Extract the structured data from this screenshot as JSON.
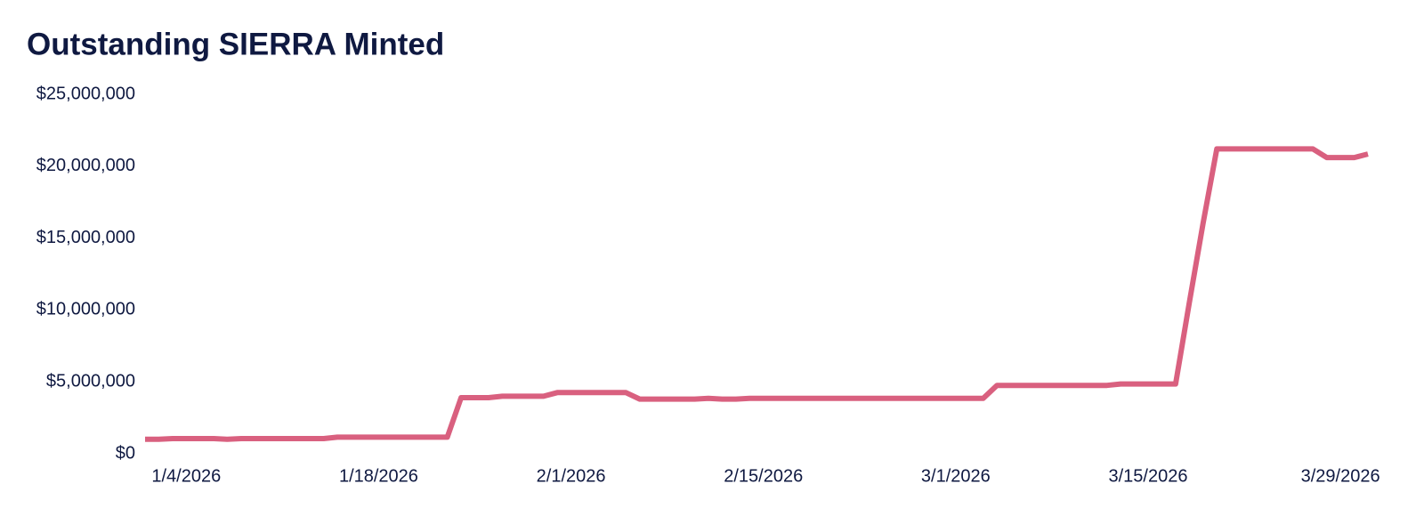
{
  "chart_data": {
    "type": "line",
    "title": "Outstanding SIERRA Minted",
    "x": [
      "2026-01-01",
      "2026-01-02",
      "2026-01-03",
      "2026-01-04",
      "2026-01-05",
      "2026-01-06",
      "2026-01-07",
      "2026-01-08",
      "2026-01-09",
      "2026-01-10",
      "2026-01-11",
      "2026-01-12",
      "2026-01-13",
      "2026-01-14",
      "2026-01-15",
      "2026-01-16",
      "2026-01-17",
      "2026-01-18",
      "2026-01-19",
      "2026-01-20",
      "2026-01-21",
      "2026-01-22",
      "2026-01-23",
      "2026-01-24",
      "2026-01-25",
      "2026-01-26",
      "2026-01-27",
      "2026-01-28",
      "2026-01-29",
      "2026-01-30",
      "2026-01-31",
      "2026-02-01",
      "2026-02-02",
      "2026-02-03",
      "2026-02-04",
      "2026-02-05",
      "2026-02-06",
      "2026-02-07",
      "2026-02-08",
      "2026-02-09",
      "2026-02-10",
      "2026-02-11",
      "2026-02-12",
      "2026-02-13",
      "2026-02-14",
      "2026-02-15",
      "2026-02-16",
      "2026-02-17",
      "2026-02-18",
      "2026-02-19",
      "2026-02-20",
      "2026-02-21",
      "2026-02-22",
      "2026-02-23",
      "2026-02-24",
      "2026-02-25",
      "2026-02-26",
      "2026-02-27",
      "2026-02-28",
      "2026-03-01",
      "2026-03-02",
      "2026-03-03",
      "2026-03-04",
      "2026-03-05",
      "2026-03-06",
      "2026-03-07",
      "2026-03-08",
      "2026-03-09",
      "2026-03-10",
      "2026-03-11",
      "2026-03-12",
      "2026-03-13",
      "2026-03-14",
      "2026-03-15",
      "2026-03-16",
      "2026-03-17",
      "2026-03-18",
      "2026-03-19",
      "2026-03-20",
      "2026-03-21",
      "2026-03-22",
      "2026-03-23",
      "2026-03-24",
      "2026-03-25",
      "2026-03-26",
      "2026-03-27",
      "2026-03-28",
      "2026-03-29",
      "2026-03-30",
      "2026-03-31"
    ],
    "series": [
      {
        "color": "#d9607f",
        "values": [
          1000000,
          1000000,
          1050000,
          1050000,
          1050000,
          1050000,
          1000000,
          1050000,
          1050000,
          1050000,
          1050000,
          1050000,
          1050000,
          1050000,
          1150000,
          1150000,
          1150000,
          1150000,
          1150000,
          1150000,
          1150000,
          1150000,
          1150000,
          3900000,
          3900000,
          3900000,
          4000000,
          4000000,
          4000000,
          4000000,
          4250000,
          4250000,
          4250000,
          4250000,
          4250000,
          4250000,
          3800000,
          3800000,
          3800000,
          3800000,
          3800000,
          3850000,
          3800000,
          3800000,
          3850000,
          3850000,
          3850000,
          3850000,
          3850000,
          3850000,
          3850000,
          3850000,
          3850000,
          3850000,
          3850000,
          3850000,
          3850000,
          3850000,
          3850000,
          3850000,
          3850000,
          3850000,
          4750000,
          4750000,
          4750000,
          4750000,
          4750000,
          4750000,
          4750000,
          4750000,
          4750000,
          4850000,
          4850000,
          4850000,
          4850000,
          4850000,
          10500000,
          16000000,
          21200000,
          21200000,
          21200000,
          21200000,
          21200000,
          21200000,
          21200000,
          21200000,
          20600000,
          20600000,
          20600000,
          20850000
        ]
      }
    ],
    "xlim": [
      "2026-01-01",
      "2026-03-31"
    ],
    "xticks": [
      {
        "value": "2026-01-04",
        "label": "1/4/2026"
      },
      {
        "value": "2026-01-18",
        "label": "1/18/2026"
      },
      {
        "value": "2026-02-01",
        "label": "2/1/2026"
      },
      {
        "value": "2026-02-15",
        "label": "2/15/2026"
      },
      {
        "value": "2026-03-01",
        "label": "3/1/2026"
      },
      {
        "value": "2026-03-15",
        "label": "3/15/2026"
      },
      {
        "value": "2026-03-29",
        "label": "3/29/2026"
      }
    ],
    "ylim": [
      0,
      25000000
    ],
    "yticks": [
      {
        "value": 0,
        "label": "$0"
      },
      {
        "value": 5000000,
        "label": "$5,000,000"
      },
      {
        "value": 10000000,
        "label": "$10,000,000"
      },
      {
        "value": 15000000,
        "label": "$15,000,000"
      },
      {
        "value": 20000000,
        "label": "$20,000,000"
      },
      {
        "value": 25000000,
        "label": "$25,000,000"
      }
    ],
    "grid": false
  }
}
